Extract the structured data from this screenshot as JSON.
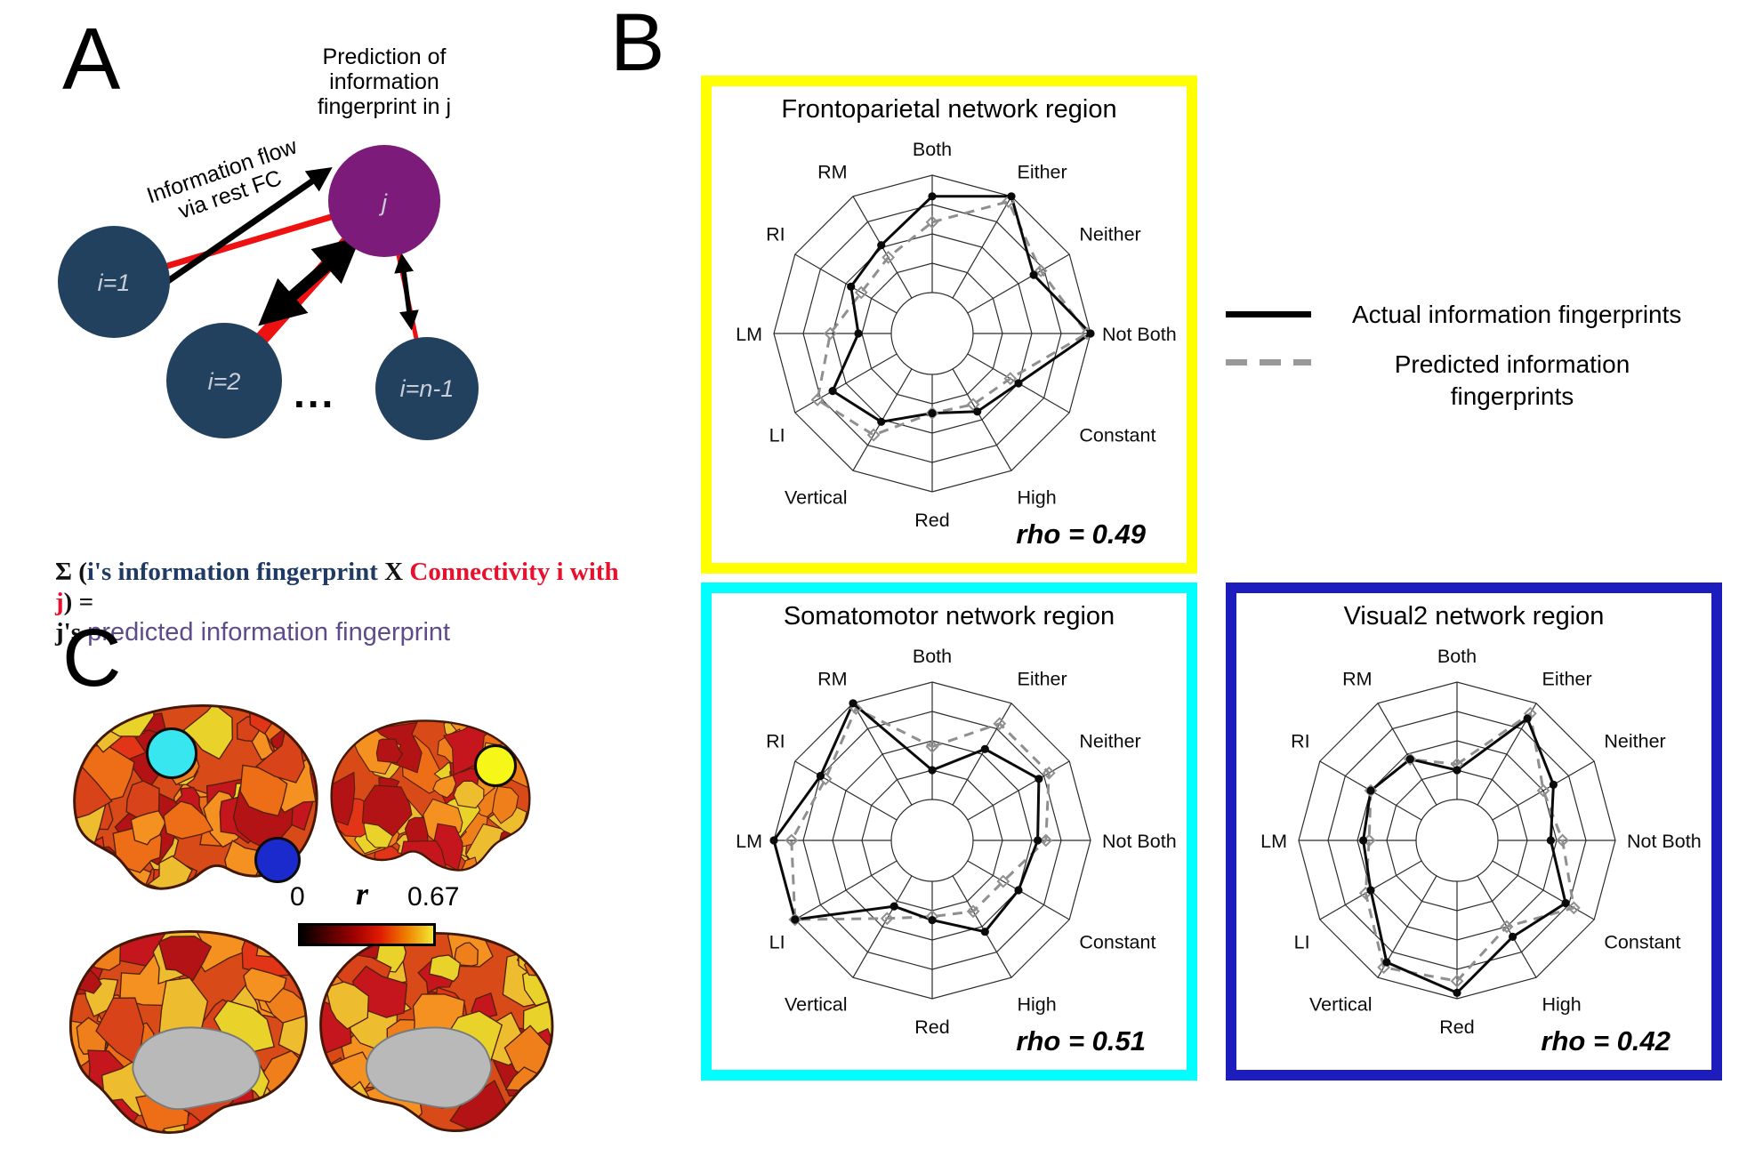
{
  "panel_labels": {
    "a": "A",
    "b": "B",
    "c": "C"
  },
  "panelA": {
    "caption_lines": [
      "Prediction of",
      "information",
      "fingerprint in j"
    ],
    "flow_label_lines": [
      "Information flow",
      "via rest FC"
    ],
    "node_labels": {
      "n1": "i=1",
      "n2": "i=2",
      "nn": "i=n-1",
      "j": "j"
    },
    "ellipsis": "...",
    "formula": {
      "sigma": "Σ (",
      "ifp": "i's information fingerprint",
      "times": " X ",
      "conn": "Connectivity i with j",
      "equals": ") =",
      "j_black": "j's ",
      "j_pred": "predicted information fingerprint"
    },
    "colors": {
      "node": "#21415f",
      "node_j": "#7c1b79",
      "edge": "#ee1111",
      "formula_blue": "#1f3a64",
      "formula_red": "#e8112d",
      "formula_purple": "#5f4b8b"
    }
  },
  "legend": {
    "actual_label": "Actual information fingerprints",
    "predicted_label_lines": [
      "Predicted information",
      "fingerprints"
    ],
    "actual_color": "#000000",
    "predicted_color": "#999999"
  },
  "chart_data": [
    {
      "type": "radar",
      "title": "Frontoparietal network region",
      "border_color": "#ffff00",
      "rho": 0.49,
      "rho_label": "rho = 0.49",
      "categories": [
        "Both",
        "Either",
        "Neither",
        "Not Both",
        "Constant",
        "High",
        "Red",
        "Vertical",
        "LI",
        "LM",
        "RI",
        "RM"
      ],
      "scale_note": "values normalized 0-1 from inner hole to outer ring",
      "series": [
        {
          "name": "Actual information fingerprints",
          "style": "solid-black",
          "values": [
            0.82,
            1.0,
            0.65,
            1.0,
            0.5,
            0.42,
            0.33,
            0.52,
            0.63,
            0.28,
            0.45,
            0.52
          ]
        },
        {
          "name": "Predicted information fingerprints",
          "style": "dashed-gray",
          "values": [
            0.6,
            0.95,
            0.72,
            0.97,
            0.42,
            0.35,
            0.33,
            0.65,
            0.78,
            0.52,
            0.35,
            0.4
          ]
        }
      ]
    },
    {
      "type": "radar",
      "title": "Somatomotor network region",
      "border_color": "#00ffff",
      "rho": 0.51,
      "rho_label": "rho = 0.51",
      "categories": [
        "Both",
        "Either",
        "Neither",
        "Not Both",
        "Constant",
        "High",
        "Red",
        "Vertical",
        "LI",
        "LM",
        "RI",
        "RM"
      ],
      "scale_note": "values normalized 0-1 from inner hole to outer ring",
      "series": [
        {
          "name": "Actual information fingerprints",
          "style": "solid-black",
          "values": [
            0.25,
            0.55,
            0.7,
            0.55,
            0.5,
            0.55,
            0.33,
            0.3,
            1.0,
            1.0,
            0.75,
            1.0
          ]
        },
        {
          "name": "Predicted information fingerprints",
          "style": "dashed-gray",
          "values": [
            0.45,
            0.8,
            0.8,
            0.62,
            0.35,
            0.35,
            0.3,
            0.42,
            1.0,
            0.85,
            0.7,
            0.95
          ]
        }
      ]
    },
    {
      "type": "radar",
      "title": "Visual2 network region",
      "border_color": "#1d1dbe",
      "rho": 0.42,
      "rho_label": "rho = 0.42",
      "categories": [
        "Both",
        "Either",
        "Neither",
        "Not Both",
        "Constant",
        "High",
        "Red",
        "Vertical",
        "LI",
        "LM",
        "RI",
        "RM"
      ],
      "scale_note": "values normalized 0-1 from inner hole to outer ring",
      "series": [
        {
          "name": "Actual information fingerprints",
          "style": "solid-black",
          "values": [
            0.25,
            0.85,
            0.6,
            0.45,
            0.72,
            0.6,
            0.95,
            0.85,
            0.5,
            0.45,
            0.5,
            0.45
          ]
        },
        {
          "name": "Predicted information fingerprints",
          "style": "dashed-gray",
          "values": [
            0.3,
            0.9,
            0.5,
            0.55,
            0.8,
            0.5,
            0.85,
            0.9,
            0.55,
            0.4,
            0.5,
            0.45
          ]
        }
      ]
    }
  ],
  "panelC": {
    "colorbar": {
      "min_label": "0",
      "axis_label": "r",
      "max_label": "0.67",
      "colors": [
        "#000000",
        "#4f0000",
        "#9c0000",
        "#e01b00",
        "#f07f00",
        "#f2e934"
      ]
    },
    "markers": [
      {
        "id": "somatomotor-marker",
        "color": "#38e6ef"
      },
      {
        "id": "visual2-marker",
        "color": "#1a2acc"
      },
      {
        "id": "frontoparietal-marker",
        "color": "#f7f619"
      }
    ]
  }
}
